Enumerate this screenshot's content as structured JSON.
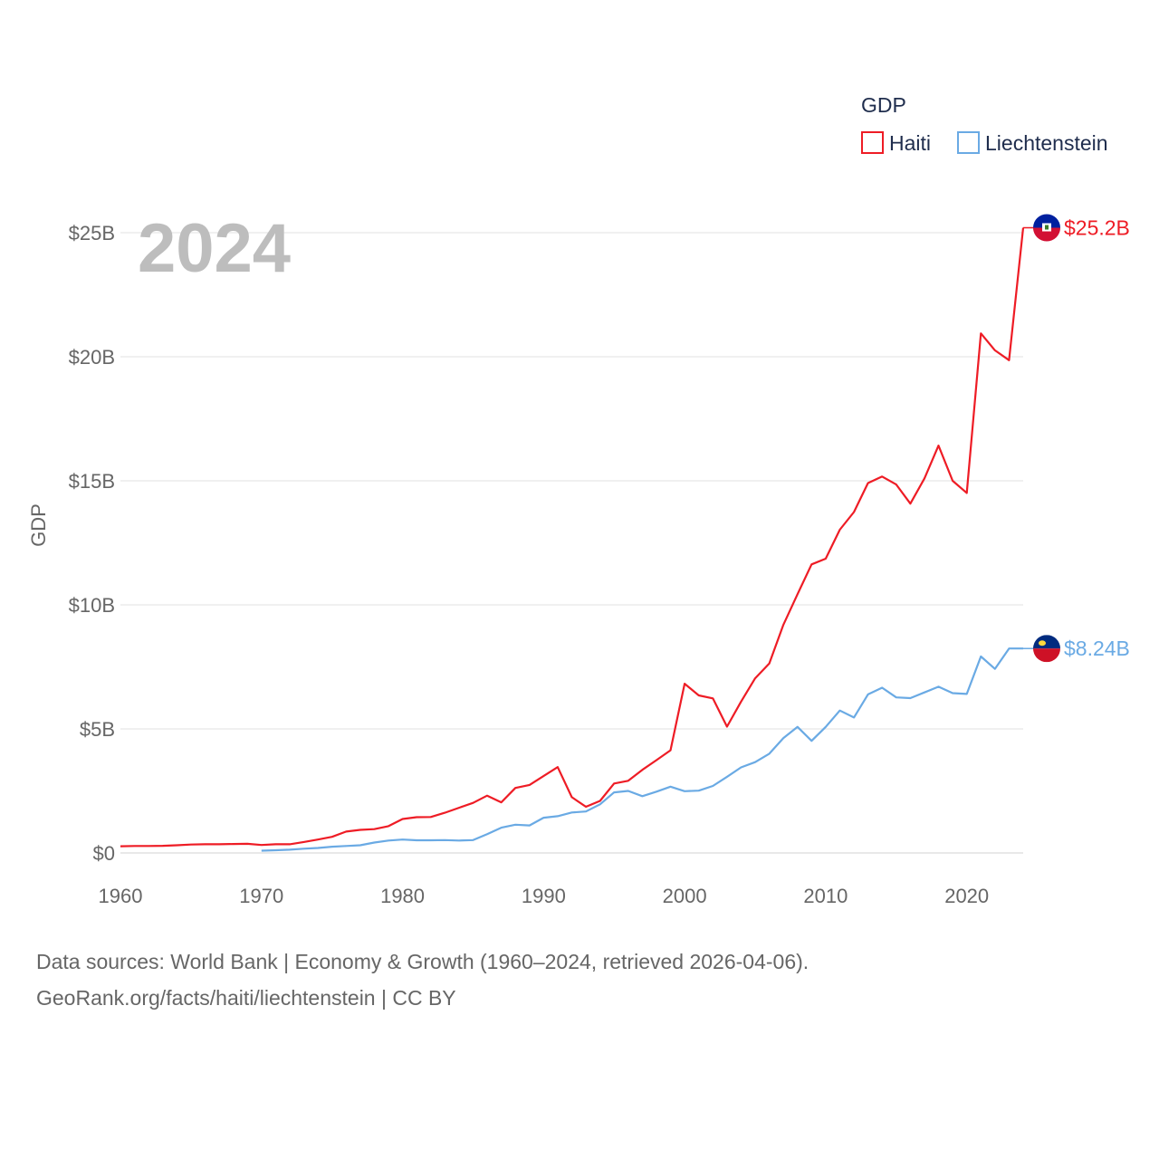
{
  "footer": {
    "line1": "Data sources: World Bank | Economy & Growth (1960–2024, retrieved 2026-04-06).",
    "line2": "GeoRank.org/facts/haiti/liechtenstein | CC BY"
  },
  "chart_data": {
    "type": "line",
    "title": "GDP",
    "year_label": "2024",
    "ylabel": "GDP",
    "xlabel": "",
    "xlim": [
      1960,
      2024
    ],
    "ylim": [
      0,
      25
    ],
    "y_ticks": [
      0,
      5,
      10,
      15,
      20,
      25
    ],
    "y_tick_labels": [
      "$0",
      "$5B",
      "$10B",
      "$15B",
      "$20B",
      "$25B"
    ],
    "x_ticks": [
      1960,
      1970,
      1980,
      1990,
      2000,
      2010,
      2020
    ],
    "x_tick_labels": [
      "1960",
      "1970",
      "1980",
      "1990",
      "2000",
      "2010",
      "2020"
    ],
    "legend": {
      "title": "GDP",
      "position": "top-right"
    },
    "units": "billions USD",
    "series": [
      {
        "name": "Haiti",
        "color": "#ee1c25",
        "end_label": "$25.2B",
        "flag_colors": [
          "#00209f",
          "#d21034"
        ],
        "x": [
          1960,
          1961,
          1962,
          1963,
          1964,
          1965,
          1966,
          1967,
          1968,
          1969,
          1970,
          1971,
          1972,
          1973,
          1974,
          1975,
          1976,
          1977,
          1978,
          1979,
          1980,
          1981,
          1982,
          1983,
          1984,
          1985,
          1986,
          1987,
          1988,
          1989,
          1990,
          1991,
          1992,
          1993,
          1994,
          1995,
          1996,
          1997,
          1998,
          1999,
          2000,
          2001,
          2002,
          2003,
          2004,
          2005,
          2006,
          2007,
          2008,
          2009,
          2010,
          2011,
          2012,
          2013,
          2014,
          2015,
          2016,
          2017,
          2018,
          2019,
          2020,
          2021,
          2022,
          2023,
          2024
        ],
        "values": [
          0.27,
          0.28,
          0.28,
          0.29,
          0.31,
          0.34,
          0.35,
          0.35,
          0.36,
          0.37,
          0.32,
          0.35,
          0.35,
          0.44,
          0.54,
          0.65,
          0.86,
          0.93,
          0.96,
          1.08,
          1.37,
          1.44,
          1.45,
          1.62,
          1.82,
          2.02,
          2.31,
          2.04,
          2.62,
          2.74,
          3.1,
          3.46,
          2.25,
          1.86,
          2.1,
          2.8,
          2.91,
          3.35,
          3.74,
          4.14,
          6.82,
          6.35,
          6.23,
          5.09,
          6.1,
          7.04,
          7.64,
          9.2,
          10.43,
          11.63,
          11.86,
          13.03,
          13.74,
          14.91,
          15.17,
          14.85,
          14.08,
          15.1,
          16.42,
          15.0,
          14.51,
          20.94,
          20.26,
          19.86,
          25.2
        ]
      },
      {
        "name": "Liechtenstein",
        "color": "#6aaae4",
        "end_label": "$8.24B",
        "flag_colors": [
          "#002b7f",
          "#ce1126"
        ],
        "x": [
          1970,
          1971,
          1972,
          1973,
          1974,
          1975,
          1976,
          1977,
          1978,
          1979,
          1980,
          1981,
          1982,
          1983,
          1984,
          1985,
          1986,
          1987,
          1988,
          1989,
          1990,
          1991,
          1992,
          1993,
          1994,
          1995,
          1996,
          1997,
          1998,
          1999,
          2000,
          2001,
          2002,
          2003,
          2004,
          2005,
          2006,
          2007,
          2008,
          2009,
          2010,
          2011,
          2012,
          2013,
          2014,
          2015,
          2016,
          2017,
          2018,
          2019,
          2020,
          2021,
          2022,
          2023,
          2024
        ],
        "values": [
          0.09,
          0.11,
          0.13,
          0.17,
          0.2,
          0.25,
          0.28,
          0.31,
          0.42,
          0.5,
          0.54,
          0.51,
          0.51,
          0.52,
          0.5,
          0.52,
          0.76,
          1.02,
          1.14,
          1.11,
          1.42,
          1.48,
          1.63,
          1.67,
          1.96,
          2.44,
          2.5,
          2.29,
          2.47,
          2.67,
          2.49,
          2.51,
          2.7,
          3.07,
          3.45,
          3.66,
          4.0,
          4.63,
          5.08,
          4.52,
          5.08,
          5.74,
          5.46,
          6.39,
          6.66,
          6.27,
          6.24,
          6.47,
          6.7,
          6.44,
          6.41,
          7.92,
          7.42,
          8.24,
          8.24
        ]
      }
    ]
  }
}
